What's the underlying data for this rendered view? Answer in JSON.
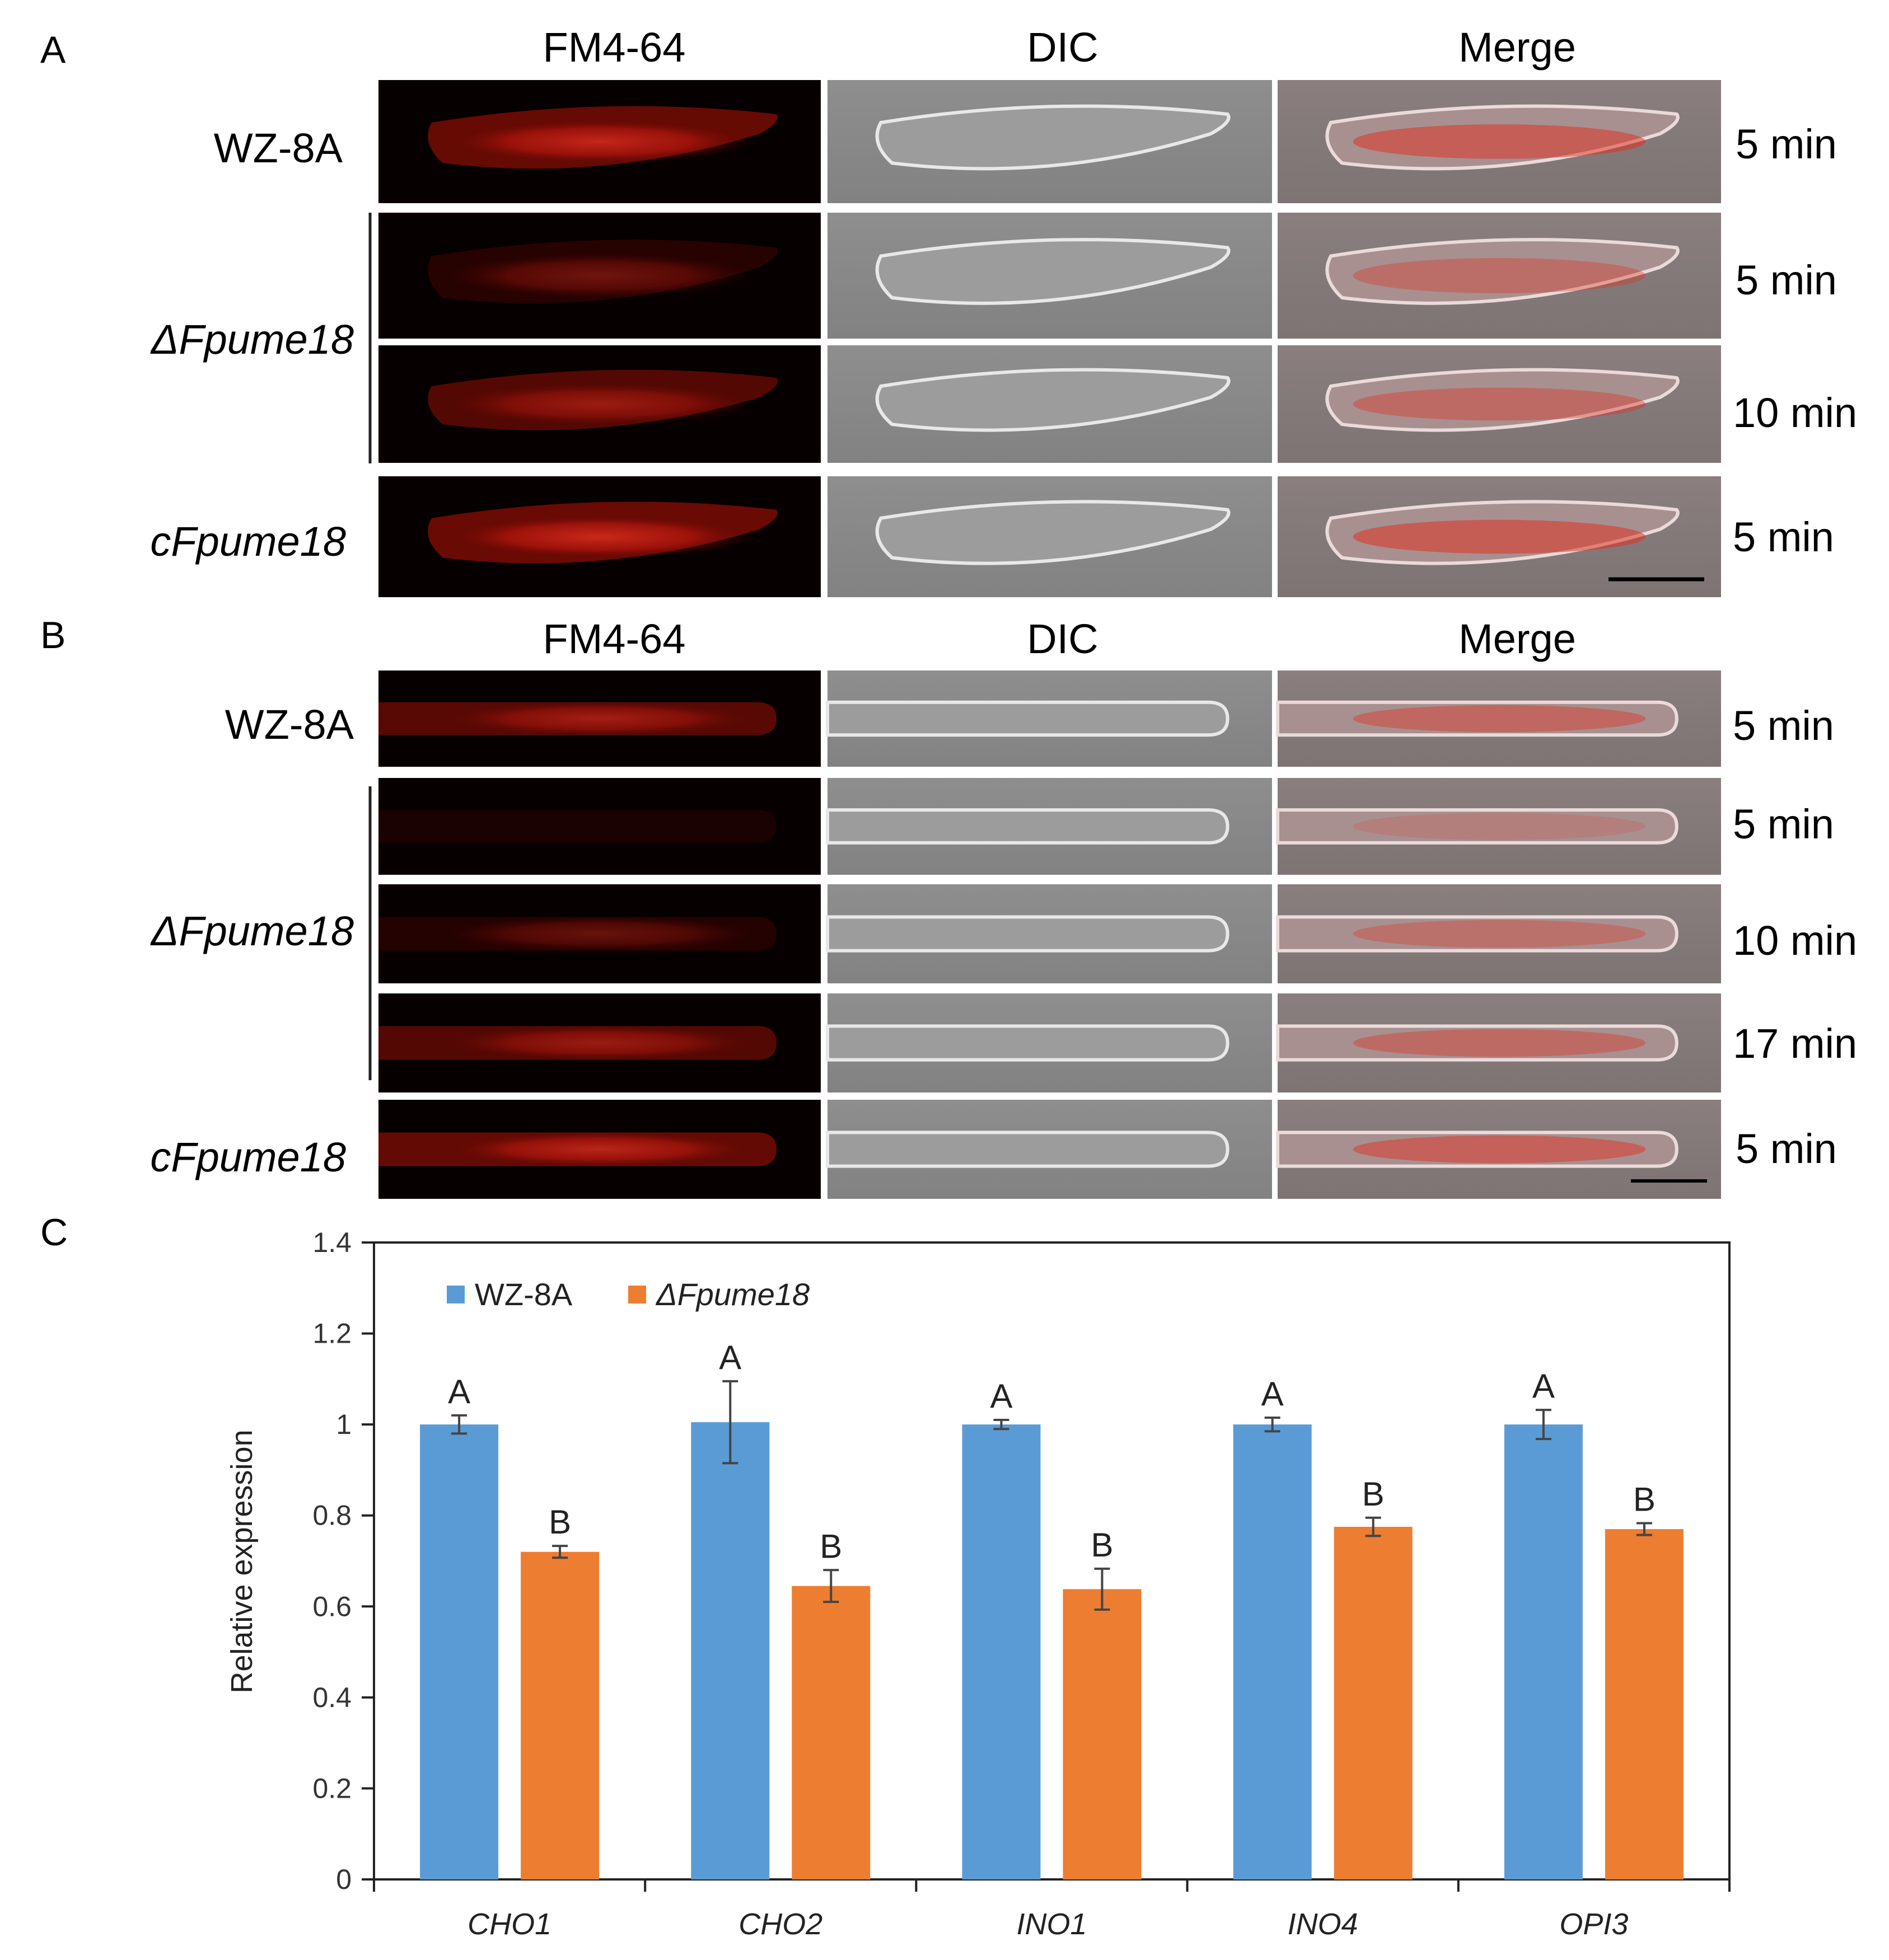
{
  "panelA": {
    "letter": "A",
    "columns": [
      "FM4-64",
      "DIC",
      "Merge"
    ],
    "rows": [
      {
        "strain": "WZ-8A",
        "time": "5 min"
      },
      {
        "strain": "ΔFpume18",
        "time": "5 min"
      },
      {
        "strain": "",
        "time": "10 min"
      },
      {
        "strain": "cFpume18",
        "time": "5 min"
      }
    ]
  },
  "panelB": {
    "letter": "B",
    "columns": [
      "FM4-64",
      "DIC",
      "Merge"
    ],
    "rows": [
      {
        "strain": "WZ-8A",
        "time": "5 min"
      },
      {
        "strain": "",
        "time": "5 min"
      },
      {
        "strain": "ΔFpume18",
        "time": "10 min"
      },
      {
        "strain": "",
        "time": "17 min"
      },
      {
        "strain": "cFpume18",
        "time": "5 min"
      }
    ]
  },
  "panelC": {
    "letter": "C"
  },
  "colors": {
    "series1": "#5B9BD5",
    "series2": "#ED7D31",
    "fluorescence": "#d42a1e",
    "dic_background": "#8a8a8a"
  },
  "chart_data": {
    "type": "bar",
    "title": "",
    "xlabel": "",
    "ylabel": "Relative expression",
    "ylim": [
      0,
      1.4
    ],
    "yticks": [
      "0",
      "0.2",
      "0.4",
      "0.6",
      "0.8",
      "1",
      "1.2",
      "1.4"
    ],
    "categories": [
      "CHO1",
      "CHO2",
      "INO1",
      "INO4",
      "OPI3"
    ],
    "legend_position": "top-left",
    "series": [
      {
        "name": "WZ-8A",
        "values": [
          1.0,
          1.005,
          1.0,
          1.0,
          1.0
        ],
        "errors": [
          0.02,
          0.09,
          0.01,
          0.015,
          0.032
        ],
        "significance": [
          "A",
          "A",
          "A",
          "A",
          "A"
        ]
      },
      {
        "name": "ΔFpume18",
        "values": [
          0.72,
          0.645,
          0.638,
          0.775,
          0.77
        ],
        "errors": [
          0.013,
          0.035,
          0.045,
          0.02,
          0.013
        ],
        "significance": [
          "B",
          "B",
          "B",
          "B",
          "B"
        ]
      }
    ]
  }
}
